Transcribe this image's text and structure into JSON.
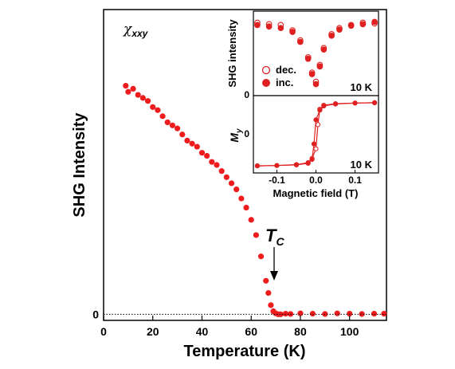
{
  "chart_data": [
    {
      "type": "scatter",
      "name_text": "χ",
      "name_sub": "xxy",
      "xlabel": "Temperature (K)",
      "ylabel": "SHG Intensity",
      "xlim": [
        0,
        115
      ],
      "ylim": [
        -0.02,
        1.0
      ],
      "x_ticks": [
        "0",
        "20",
        "40",
        "60",
        "80",
        "100"
      ],
      "y_ticks": [
        "0"
      ],
      "annotation": {
        "text": "T",
        "sub": "C",
        "x": 70,
        "y": 0.24
      },
      "marker_color": "#ee1c1c",
      "grid": false,
      "series": [
        {
          "x": [
            9,
            10,
            12,
            14,
            16,
            18,
            20,
            22,
            24,
            26,
            28,
            30,
            32,
            34,
            36,
            38,
            40,
            42,
            44,
            46,
            48,
            50,
            52,
            54,
            56,
            58,
            60,
            62,
            64,
            66,
            67,
            68,
            69,
            70,
            71,
            72,
            74,
            76,
            80,
            85,
            90,
            95,
            100,
            105,
            110,
            114
          ],
          "y": [
            0.75,
            0.73,
            0.74,
            0.72,
            0.71,
            0.7,
            0.68,
            0.67,
            0.65,
            0.63,
            0.62,
            0.61,
            0.59,
            0.57,
            0.56,
            0.55,
            0.53,
            0.52,
            0.5,
            0.49,
            0.47,
            0.45,
            0.43,
            0.41,
            0.38,
            0.35,
            0.31,
            0.26,
            0.19,
            0.11,
            0.07,
            0.03,
            0.01,
            0.003,
            0.0,
            0.0,
            0.002,
            0.001,
            0.003,
            0.002,
            0.001,
            0.003,
            0.002,
            0.001,
            0.002,
            0.002
          ]
        }
      ]
    },
    {
      "type": "scatter",
      "ylabel": "SHG intensity",
      "xlim": [
        -0.16,
        0.16
      ],
      "ylim": [
        0,
        1.1
      ],
      "y_ticks": [
        "0"
      ],
      "temperature_label": "10 K",
      "legend": [
        {
          "label": "dec.",
          "marker": "open-circle"
        },
        {
          "label": "inc.",
          "marker": "filled-circle"
        }
      ],
      "series": [
        {
          "name": "dec.",
          "x": [
            -0.15,
            -0.12,
            -0.09,
            -0.06,
            -0.04,
            -0.02,
            -0.01,
            0.0,
            0.01,
            0.02,
            0.04,
            0.06,
            0.09,
            0.12,
            0.15
          ],
          "y": [
            0.95,
            0.93,
            0.92,
            0.85,
            0.72,
            0.5,
            0.3,
            0.18,
            0.4,
            0.62,
            0.8,
            0.88,
            0.92,
            0.95,
            0.94
          ]
        },
        {
          "name": "inc.",
          "x": [
            -0.15,
            -0.12,
            -0.09,
            -0.06,
            -0.04,
            -0.02,
            -0.01,
            0.0,
            0.01,
            0.02,
            0.04,
            0.06,
            0.09,
            0.12,
            0.15
          ],
          "y": [
            0.92,
            0.9,
            0.88,
            0.83,
            0.7,
            0.48,
            0.28,
            0.15,
            0.38,
            0.6,
            0.78,
            0.86,
            0.91,
            0.93,
            0.96
          ]
        }
      ]
    },
    {
      "type": "line",
      "ylabel": "M",
      "ylabel_sub": "y",
      "xlabel": "Magnetic field (T)",
      "xlim": [
        -0.16,
        0.16
      ],
      "ylim": [
        -1.2,
        1.2
      ],
      "x_ticks": [
        "-0.1",
        "0.0",
        "0.1"
      ],
      "y_ticks": [
        "0"
      ],
      "temperature_label": "10 K",
      "series": [
        {
          "name": "dec.",
          "x": [
            -0.15,
            -0.1,
            -0.05,
            -0.02,
            -0.01,
            0.0,
            0.005,
            0.01,
            0.02,
            0.05,
            0.1,
            0.15
          ],
          "y": [
            -0.98,
            -0.97,
            -0.94,
            -0.88,
            -0.75,
            -0.45,
            0.3,
            0.78,
            0.9,
            0.95,
            0.97,
            0.98
          ]
        },
        {
          "name": "inc.",
          "x": [
            -0.15,
            -0.1,
            -0.05,
            -0.02,
            -0.01,
            -0.005,
            0.0,
            0.01,
            0.02,
            0.05,
            0.1,
            0.15
          ],
          "y": [
            -0.98,
            -0.97,
            -0.95,
            -0.9,
            -0.78,
            -0.3,
            0.45,
            0.75,
            0.88,
            0.94,
            0.97,
            0.98
          ]
        }
      ]
    }
  ]
}
